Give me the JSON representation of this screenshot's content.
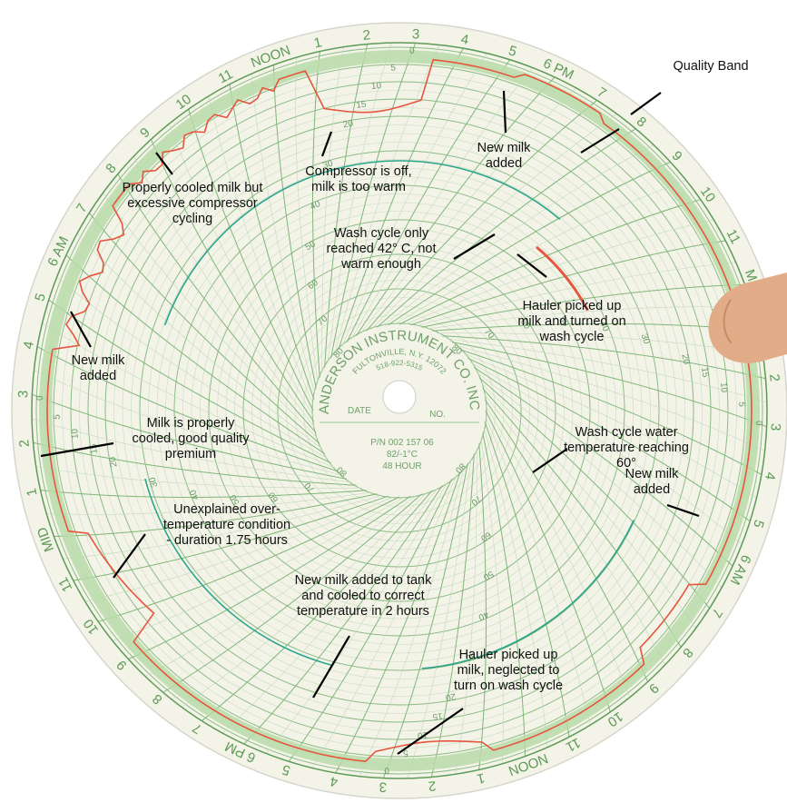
{
  "chart_face": {
    "maker": "ANDERSON INSTRUMENT CO. INC.",
    "address": "FULTONVILLE, N.Y. 12072",
    "phone": "518-922-5315",
    "date_label": "DATE",
    "number_label": "NO.",
    "part_number": "P/N 002 157 06",
    "range": "82/-1°C",
    "duration": "48 HOUR",
    "hour_labels": [
      "NOON",
      "1",
      "2",
      "3",
      "4",
      "5",
      "6 PM",
      "7",
      "8",
      "9",
      "10",
      "11",
      "MID",
      "1",
      "2",
      "3",
      "4",
      "5",
      "6 AM",
      "7",
      "8",
      "9",
      "10",
      "11",
      "NOON",
      "1",
      "2",
      "3",
      "4",
      "5",
      "6 PM",
      "7",
      "8",
      "9",
      "10",
      "11",
      "MID",
      "1",
      "2",
      "3",
      "4",
      "5",
      "6 AM",
      "7",
      "8",
      "9",
      "10",
      "11"
    ],
    "scale_ticks": [
      0,
      5,
      10,
      15,
      20,
      30,
      40,
      50,
      60,
      70,
      80
    ]
  },
  "annotations": [
    {
      "lines": [
        "Quality Band"
      ]
    },
    {
      "lines": [
        "New milk",
        "added"
      ]
    },
    {
      "lines": [
        "Compressor is off,",
        "milk is too warm"
      ]
    },
    {
      "lines": [
        "Properly cooled milk but",
        "excessive compressor",
        "cycling"
      ]
    },
    {
      "lines": [
        "Wash cycle only",
        "reached  42° C, not",
        "warm enough"
      ]
    },
    {
      "lines": [
        "Hauler picked up",
        "milk and turned on",
        "wash cycle"
      ]
    },
    {
      "lines": [
        "New milk",
        "added"
      ]
    },
    {
      "lines": [
        "Milk is properly",
        "cooled, good quality",
        "premium"
      ]
    },
    {
      "lines": [
        "Wash cycle water",
        "temperature reaching",
        "60°"
      ]
    },
    {
      "lines": [
        "New milk",
        "added"
      ]
    },
    {
      "lines": [
        "Unexplained over-",
        "temperature  condition",
        "- duration 1.75 hours"
      ]
    },
    {
      "lines": [
        "New milk added to tank",
        "and cooled to correct",
        "temperature in 2 hours"
      ]
    },
    {
      "lines": [
        "Hauler picked up",
        "milk, neglected to",
        "turn on wash cycle"
      ]
    }
  ]
}
